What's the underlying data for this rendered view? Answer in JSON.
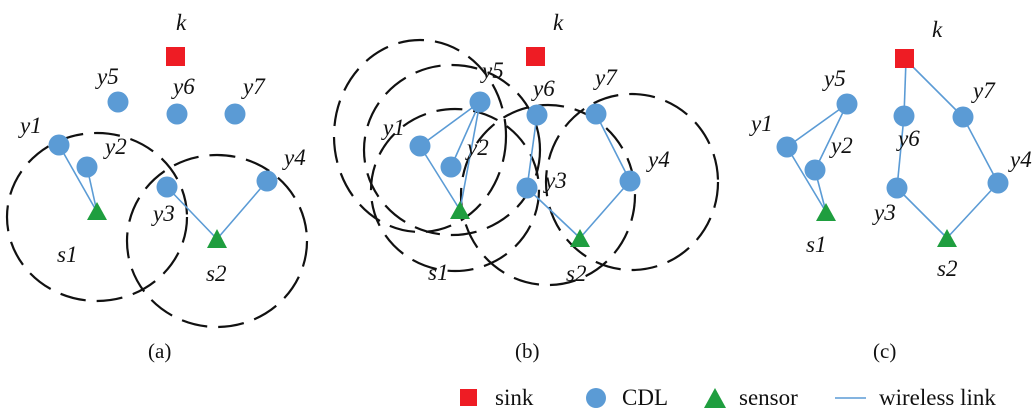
{
  "colors": {
    "sink": "#ee1c24",
    "cdl": "#5b9bd5",
    "sensor": "#1f9e3f",
    "link": "#5b9bd5",
    "range": "#111111"
  },
  "node_labels": {
    "k": "k",
    "y1": "y1",
    "y2": "y2",
    "y3": "y3",
    "y4": "y4",
    "y5": "y5",
    "y6": "y6",
    "y7": "y7",
    "s1": "s1",
    "s2": "s2"
  },
  "captions": {
    "a": "(a)",
    "b": "(b)",
    "c": "(c)"
  },
  "legend": [
    {
      "icon": "sink-square-icon",
      "label": "sink"
    },
    {
      "icon": "cdl-circle-icon",
      "label": "CDL"
    },
    {
      "icon": "sensor-triangle-icon",
      "label": "sensor"
    },
    {
      "icon": "wireless-link-line-icon",
      "label": "wireless link"
    }
  ]
}
